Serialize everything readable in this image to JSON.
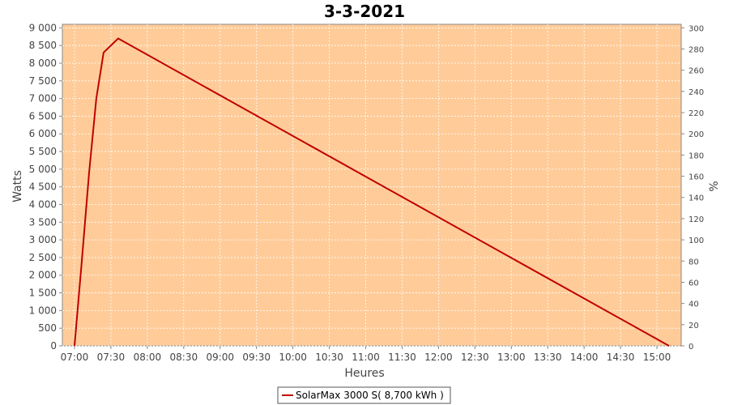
{
  "chart_data": {
    "type": "line",
    "title": "3-3-2021",
    "xlabel": "Heures",
    "ylabel": "Watts",
    "y2label": "%",
    "x_ticks": [
      "07:00",
      "07:30",
      "08:00",
      "08:30",
      "09:00",
      "09:30",
      "10:00",
      "10:30",
      "11:00",
      "11:30",
      "12:00",
      "12:30",
      "13:00",
      "13:30",
      "14:00",
      "14:30",
      "15:00"
    ],
    "y_ticks": [
      "0",
      "500",
      "1 000",
      "1 500",
      "2 000",
      "2 500",
      "3 000",
      "3 500",
      "4 000",
      "4 500",
      "5 000",
      "5 500",
      "6 000",
      "6 500",
      "7 000",
      "7 500",
      "8 000",
      "8 500",
      "9 000"
    ],
    "y2_ticks": [
      "0",
      "20",
      "40",
      "60",
      "80",
      "100",
      "120",
      "140",
      "160",
      "180",
      "200",
      "220",
      "240",
      "260",
      "280",
      "300"
    ],
    "xlim": [
      "06:50",
      "15:20"
    ],
    "ylim": [
      0,
      9100
    ],
    "y2lim": [
      0,
      303.3
    ],
    "grid": true,
    "legend_position": "bottom",
    "plot_background": "#ffcc99",
    "series": [
      {
        "name": "SolarMax 3000 S( 8,700 kWh )",
        "color": "#c00000",
        "points": [
          {
            "x": "07:00",
            "y": 0
          },
          {
            "x": "07:06",
            "y": 2400
          },
          {
            "x": "07:12",
            "y": 4900
          },
          {
            "x": "07:18",
            "y": 7000
          },
          {
            "x": "07:24",
            "y": 8300
          },
          {
            "x": "07:30",
            "y": 8500
          },
          {
            "x": "07:36",
            "y": 8700
          },
          {
            "x": "15:10",
            "y": 0
          }
        ]
      }
    ]
  }
}
